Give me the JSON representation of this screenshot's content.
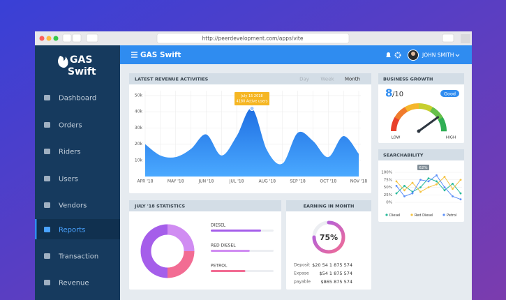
{
  "browser": {
    "url": "http://peerdevelopment.com/apps/vite"
  },
  "sidebar": {
    "logo": [
      "GAS",
      "Swift"
    ],
    "menu": [
      "Dashboard",
      "Orders",
      "Riders",
      "Users",
      "Vendors",
      "Reports",
      "Transaction",
      "Revenue"
    ],
    "active": 5
  },
  "topbar": {
    "title": "GAS Swift",
    "user": "JOHN SMITH"
  },
  "revenue": {
    "title": "LATEST REVENUE ACTIVITIES",
    "tabs": [
      "Day",
      "Week",
      "Month"
    ],
    "active_tab": 2,
    "tooltip": {
      "date": "July 15 2018",
      "text": "4180 Active users"
    },
    "chart_data": {
      "type": "area",
      "categories": [
        "APR '18",
        null,
        "MAY '18",
        null,
        "JUN '18",
        null,
        "JUL '18",
        null,
        "AUG '18",
        null,
        "SEP '18",
        null,
        "OCT '18",
        null,
        "NOV '18"
      ],
      "values": [
        20000,
        13000,
        12000,
        17000,
        26000,
        13000,
        25000,
        42000,
        16000,
        8000,
        27000,
        22000,
        12000,
        25000,
        14000
      ],
      "color": "#2f86f0",
      "ylim": [
        0,
        53000
      ],
      "yticks": [
        {
          "value": 10000,
          "label": "10k"
        },
        {
          "value": 20000,
          "label": "20k"
        },
        {
          "value": 30000,
          "label": "30k"
        },
        {
          "value": 40000,
          "label": "40k"
        },
        {
          "value": 50000,
          "label": "50k"
        }
      ],
      "grid": true
    }
  },
  "statistics": {
    "title": "JULY '18 STATISTICS",
    "chart_data": {
      "type": "donut",
      "categories": [
        "DIESEL",
        "RED DIESEL",
        "PETROL"
      ],
      "values": [
        50,
        25,
        25
      ],
      "levels": [
        80,
        62,
        55
      ],
      "colors": [
        "#a55eea",
        "#d08cf2",
        "#f26c93"
      ]
    }
  },
  "earning": {
    "title": "EARNING IN MONTH",
    "chart_data": {
      "type": "progress",
      "value": 75,
      "value_label": "75%",
      "ylim": [
        0,
        100
      ],
      "color": [
        "#a55eea",
        "#f26c93"
      ]
    },
    "rows": [
      [
        "Deposit",
        "$20 54 1 875 574"
      ],
      [
        "Expase",
        "$54 1 875 574"
      ],
      [
        "payable",
        "$865 875 574"
      ]
    ]
  },
  "growth": {
    "title": "BUSINESS GROWTH",
    "badge": "Good",
    "chart_data": {
      "type": "gauge",
      "value": 8,
      "range": [
        0,
        10
      ],
      "range_label": "/10",
      "low": "LOW",
      "high": "HIGH"
    }
  },
  "searchability": {
    "title": "SEARCHABILITY",
    "annotation": "62%",
    "chart_data": {
      "type": "line",
      "categories": [
        null,
        null,
        null,
        null,
        null,
        null,
        null,
        null,
        null
      ],
      "series": [
        {
          "name": "Diesel",
          "color": "#26b99a",
          "values": [
            30,
            55,
            35,
            50,
            80,
            70,
            40,
            62,
            30
          ]
        },
        {
          "name": "Red Diesel",
          "color": "#f5c342",
          "values": [
            70,
            40,
            65,
            35,
            50,
            60,
            85,
            45,
            75
          ]
        },
        {
          "name": "Petrol",
          "color": "#5b8ff9",
          "values": [
            55,
            20,
            30,
            75,
            70,
            90,
            50,
            20,
            10
          ]
        }
      ],
      "ylim": [
        0,
        100
      ],
      "yticks": [
        {
          "value": 0,
          "label": "0%"
        },
        {
          "value": 25,
          "label": "25%"
        },
        {
          "value": 50,
          "label": "50%"
        },
        {
          "value": 75,
          "label": "75%"
        },
        {
          "value": 100,
          "label": "100%"
        }
      ],
      "grid": true
    }
  }
}
